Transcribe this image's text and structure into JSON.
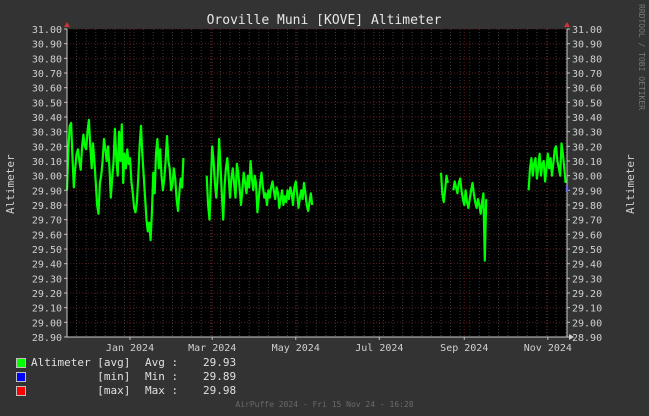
{
  "chart_data": {
    "type": "line",
    "title": "Oroville Muni [KOVE] Altimeter",
    "ylabel": "Altimeter",
    "ylabel_right": "Altimeter",
    "ylim": [
      28.9,
      31.0
    ],
    "y_ticks": [
      "31.00",
      "30.90",
      "30.80",
      "30.70",
      "30.60",
      "30.50",
      "30.40",
      "30.30",
      "30.20",
      "30.10",
      "30.00",
      "29.90",
      "29.80",
      "29.70",
      "29.60",
      "29.50",
      "29.40",
      "29.30",
      "29.20",
      "29.10",
      "29.00",
      "28.90"
    ],
    "x_range": [
      "2023-11-16",
      "2024-11-15"
    ],
    "x_ticks": [
      {
        "label": "Jan 2024",
        "date": "2024-01-01"
      },
      {
        "label": "Mar 2024",
        "date": "2024-03-01"
      },
      {
        "label": "May 2024",
        "date": "2024-05-01"
      },
      {
        "label": "Jul 2024",
        "date": "2024-07-01"
      },
      {
        "label": "Sep 2024",
        "date": "2024-09-01"
      },
      {
        "label": "Nov 2024",
        "date": "2024-11-01"
      }
    ],
    "grid": true,
    "series": [
      {
        "name": "Altimeter",
        "color": "#00ff00",
        "segments": [
          [
            [
              "2023-11-16",
              29.9
            ],
            [
              "2023-11-17",
              30.18
            ],
            [
              "2023-11-18",
              30.34
            ],
            [
              "2023-11-19",
              30.36
            ],
            [
              "2023-11-20",
              30.12
            ],
            [
              "2023-11-21",
              29.92
            ],
            [
              "2023-11-22",
              30.05
            ],
            [
              "2023-11-23",
              30.15
            ],
            [
              "2023-11-24",
              30.18
            ],
            [
              "2023-11-25",
              30.1
            ],
            [
              "2023-11-26",
              30.04
            ],
            [
              "2023-11-27",
              30.2
            ],
            [
              "2023-11-28",
              30.28
            ],
            [
              "2023-11-29",
              30.2
            ],
            [
              "2023-11-30",
              30.18
            ],
            [
              "2023-12-01",
              30.3
            ],
            [
              "2023-12-02",
              30.38
            ],
            [
              "2023-12-03",
              30.2
            ],
            [
              "2023-12-04",
              30.05
            ],
            [
              "2023-12-05",
              30.22
            ],
            [
              "2023-12-06",
              30.1
            ],
            [
              "2023-12-07",
              29.95
            ],
            [
              "2023-12-08",
              29.8
            ],
            [
              "2023-12-09",
              29.74
            ],
            [
              "2023-12-10",
              29.95
            ],
            [
              "2023-12-11",
              30.0
            ],
            [
              "2023-12-12",
              30.1
            ],
            [
              "2023-12-13",
              30.25
            ],
            [
              "2023-12-14",
              30.18
            ],
            [
              "2023-12-15",
              30.1
            ],
            [
              "2023-12-16",
              30.2
            ],
            [
              "2023-12-17",
              30.05
            ],
            [
              "2023-12-18",
              29.85
            ],
            [
              "2023-12-19",
              29.98
            ],
            [
              "2023-12-20",
              30.1
            ],
            [
              "2023-12-21",
              30.32
            ],
            [
              "2023-12-22",
              30.12
            ],
            [
              "2023-12-23",
              30.0
            ],
            [
              "2023-12-24",
              30.3
            ],
            [
              "2023-12-25",
              30.1
            ],
            [
              "2023-12-26",
              30.35
            ],
            [
              "2023-12-27",
              29.95
            ],
            [
              "2023-12-28",
              30.15
            ],
            [
              "2023-12-29",
              30.05
            ],
            [
              "2023-12-30",
              30.18
            ],
            [
              "2023-12-31",
              30.08
            ],
            [
              "2024-01-01",
              30.12
            ],
            [
              "2024-01-02",
              29.96
            ],
            [
              "2024-01-03",
              29.88
            ],
            [
              "2024-01-04",
              29.78
            ],
            [
              "2024-01-05",
              29.75
            ],
            [
              "2024-01-06",
              29.82
            ],
            [
              "2024-01-07",
              29.98
            ],
            [
              "2024-01-08",
              30.2
            ],
            [
              "2024-01-09",
              30.34
            ],
            [
              "2024-01-10",
              30.15
            ],
            [
              "2024-01-11",
              30.0
            ],
            [
              "2024-01-12",
              29.85
            ],
            [
              "2024-01-13",
              29.7
            ],
            [
              "2024-01-14",
              29.62
            ],
            [
              "2024-01-15",
              29.68
            ],
            [
              "2024-01-16",
              29.56
            ],
            [
              "2024-01-17",
              29.75
            ],
            [
              "2024-01-18",
              30.02
            ],
            [
              "2024-01-19",
              29.88
            ],
            [
              "2024-01-20",
              30.15
            ],
            [
              "2024-01-21",
              30.25
            ],
            [
              "2024-01-22",
              30.05
            ],
            [
              "2024-01-23",
              30.18
            ],
            [
              "2024-01-24",
              30.0
            ],
            [
              "2024-01-25",
              29.9
            ],
            [
              "2024-01-26",
              29.98
            ],
            [
              "2024-01-27",
              30.1
            ],
            [
              "2024-01-28",
              30.27
            ],
            [
              "2024-01-29",
              30.1
            ],
            [
              "2024-01-30",
              30.05
            ],
            [
              "2024-01-31",
              29.9
            ],
            [
              "2024-02-01",
              29.94
            ],
            [
              "2024-02-02",
              30.05
            ],
            [
              "2024-02-03",
              29.98
            ],
            [
              "2024-02-04",
              29.84
            ],
            [
              "2024-02-05",
              29.76
            ],
            [
              "2024-02-06",
              29.88
            ],
            [
              "2024-02-07",
              29.98
            ],
            [
              "2024-02-08",
              29.92
            ],
            [
              "2024-02-09",
              30.12
            ]
          ],
          [
            [
              "2024-02-26",
              30.0
            ],
            [
              "2024-02-27",
              29.8
            ],
            [
              "2024-02-28",
              29.7
            ],
            [
              "2024-03-01",
              30.2
            ],
            [
              "2024-03-02",
              30.1
            ],
            [
              "2024-03-03",
              29.95
            ],
            [
              "2024-03-04",
              29.85
            ],
            [
              "2024-03-05",
              30.0
            ],
            [
              "2024-03-06",
              30.25
            ],
            [
              "2024-03-07",
              30.08
            ],
            [
              "2024-03-08",
              29.88
            ],
            [
              "2024-03-09",
              29.7
            ],
            [
              "2024-03-10",
              29.92
            ],
            [
              "2024-03-11",
              30.05
            ],
            [
              "2024-03-12",
              30.12
            ],
            [
              "2024-03-13",
              30.0
            ],
            [
              "2024-03-14",
              29.85
            ],
            [
              "2024-03-15",
              29.98
            ],
            [
              "2024-03-16",
              30.05
            ],
            [
              "2024-03-17",
              29.95
            ],
            [
              "2024-03-18",
              29.85
            ],
            [
              "2024-03-19",
              30.08
            ],
            [
              "2024-03-20",
              30.02
            ],
            [
              "2024-03-21",
              29.92
            ],
            [
              "2024-03-22",
              29.8
            ],
            [
              "2024-03-23",
              29.9
            ],
            [
              "2024-03-24",
              30.02
            ],
            [
              "2024-03-25",
              29.95
            ],
            [
              "2024-03-26",
              29.88
            ],
            [
              "2024-03-27",
              30.0
            ],
            [
              "2024-03-28",
              29.92
            ],
            [
              "2024-03-29",
              30.1
            ],
            [
              "2024-03-30",
              29.98
            ],
            [
              "2024-03-31",
              29.9
            ],
            [
              "2024-04-01",
              30.0
            ],
            [
              "2024-04-02",
              29.95
            ],
            [
              "2024-04-03",
              29.75
            ],
            [
              "2024-04-04",
              29.85
            ],
            [
              "2024-04-05",
              29.95
            ],
            [
              "2024-04-06",
              30.02
            ],
            [
              "2024-04-07",
              29.92
            ],
            [
              "2024-04-08",
              29.85
            ],
            [
              "2024-04-09",
              29.88
            ],
            [
              "2024-04-10",
              29.8
            ],
            [
              "2024-04-11",
              29.9
            ],
            [
              "2024-04-12",
              29.85
            ],
            [
              "2024-04-13",
              29.92
            ],
            [
              "2024-04-14",
              29.96
            ],
            [
              "2024-04-15",
              29.9
            ],
            [
              "2024-04-16",
              29.84
            ],
            [
              "2024-04-17",
              29.92
            ],
            [
              "2024-04-18",
              29.88
            ],
            [
              "2024-04-19",
              29.78
            ],
            [
              "2024-04-20",
              29.84
            ],
            [
              "2024-04-21",
              29.9
            ],
            [
              "2024-04-22",
              29.8
            ],
            [
              "2024-04-23",
              29.86
            ],
            [
              "2024-04-24",
              29.82
            ],
            [
              "2024-04-25",
              29.9
            ],
            [
              "2024-04-26",
              29.84
            ],
            [
              "2024-04-27",
              29.92
            ],
            [
              "2024-04-28",
              29.88
            ],
            [
              "2024-04-29",
              29.8
            ],
            [
              "2024-04-30",
              29.92
            ],
            [
              "2024-05-01",
              29.96
            ],
            [
              "2024-05-02",
              29.88
            ],
            [
              "2024-05-03",
              29.78
            ],
            [
              "2024-05-04",
              29.85
            ],
            [
              "2024-05-05",
              29.9
            ],
            [
              "2024-05-06",
              29.84
            ],
            [
              "2024-05-07",
              29.95
            ],
            [
              "2024-05-08",
              29.88
            ],
            [
              "2024-05-09",
              29.8
            ],
            [
              "2024-05-10",
              29.76
            ],
            [
              "2024-05-11",
              29.82
            ],
            [
              "2024-05-12",
              29.88
            ],
            [
              "2024-05-13",
              29.8
            ]
          ],
          [
            [
              "2024-08-15",
              30.02
            ],
            [
              "2024-08-16",
              29.88
            ],
            [
              "2024-08-17",
              29.82
            ],
            [
              "2024-08-18",
              29.9
            ],
            [
              "2024-08-19",
              30.0
            ],
            [
              "2024-08-20",
              29.95
            ]
          ],
          [
            [
              "2024-08-24",
              29.9
            ],
            [
              "2024-08-25",
              29.96
            ],
            [
              "2024-08-26",
              29.92
            ],
            [
              "2024-08-27",
              29.88
            ],
            [
              "2024-08-28",
              29.95
            ],
            [
              "2024-08-29",
              29.98
            ],
            [
              "2024-08-30",
              29.9
            ],
            [
              "2024-08-31",
              29.84
            ],
            [
              "2024-09-01",
              29.8
            ],
            [
              "2024-09-02",
              29.9
            ],
            [
              "2024-09-03",
              29.82
            ],
            [
              "2024-09-04",
              29.78
            ],
            [
              "2024-09-05",
              29.84
            ],
            [
              "2024-09-06",
              29.9
            ],
            [
              "2024-09-07",
              29.95
            ],
            [
              "2024-09-08",
              29.88
            ],
            [
              "2024-09-09",
              29.82
            ],
            [
              "2024-09-10",
              29.78
            ],
            [
              "2024-09-11",
              29.84
            ],
            [
              "2024-09-12",
              29.8
            ],
            [
              "2024-09-13",
              29.74
            ],
            [
              "2024-09-14",
              29.82
            ],
            [
              "2024-09-15",
              29.88
            ],
            [
              "2024-09-16",
              29.42
            ],
            [
              "2024-09-17",
              29.84
            ]
          ],
          [
            [
              "2024-10-18",
              29.9
            ],
            [
              "2024-10-19",
              30.05
            ],
            [
              "2024-10-20",
              30.12
            ],
            [
              "2024-10-21",
              30.0
            ],
            [
              "2024-10-22",
              30.08
            ],
            [
              "2024-10-23",
              30.12
            ],
            [
              "2024-10-24",
              29.98
            ],
            [
              "2024-10-25",
              30.05
            ],
            [
              "2024-10-26",
              30.15
            ],
            [
              "2024-10-27",
              30.0
            ],
            [
              "2024-10-28",
              30.08
            ],
            [
              "2024-10-29",
              30.1
            ],
            [
              "2024-10-30",
              29.96
            ],
            [
              "2024-10-31",
              30.05
            ],
            [
              "2024-11-01",
              30.15
            ],
            [
              "2024-11-02",
              30.05
            ],
            [
              "2024-11-03",
              30.12
            ],
            [
              "2024-11-04",
              30.0
            ],
            [
              "2024-11-05",
              30.08
            ],
            [
              "2024-11-06",
              30.18
            ],
            [
              "2024-11-07",
              30.2
            ],
            [
              "2024-11-08",
              30.1
            ],
            [
              "2024-11-09",
              30.05
            ],
            [
              "2024-11-10",
              30.0
            ],
            [
              "2024-11-11",
              30.22
            ],
            [
              "2024-11-12",
              30.15
            ],
            [
              "2024-11-13",
              30.05
            ],
            [
              "2024-11-14",
              29.95
            ]
          ]
        ]
      },
      {
        "name": "Altimeter min",
        "color": "#0000ff",
        "segments": [
          [
            [
              "2024-11-15",
              29.93
            ],
            [
              "2024-11-15",
              29.89
            ]
          ]
        ]
      }
    ]
  },
  "legend": [
    {
      "color": "#00ff00",
      "label": "Altimeter [avg]",
      "stat": "Avg :",
      "value": "29.93"
    },
    {
      "color": "#0000ff",
      "label": "          [min]",
      "stat": "Min :",
      "value": "29.89"
    },
    {
      "color": "#ff0000",
      "label": "          [max]",
      "stat": "Max :",
      "value": "29.98"
    }
  ],
  "footer": "AirPuffe 2024 - Fri 15 Nov 24 - 16:28",
  "side_credit": "RRDTOOL / TOBI OETIKER"
}
